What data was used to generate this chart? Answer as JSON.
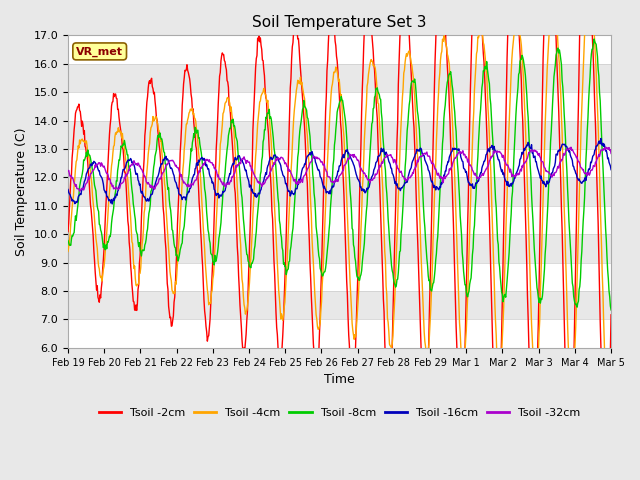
{
  "title": "Soil Temperature Set 3",
  "xlabel": "Time",
  "ylabel": "Soil Temperature (C)",
  "ylim": [
    6.0,
    17.0
  ],
  "yticks": [
    6.0,
    7.0,
    8.0,
    9.0,
    10.0,
    11.0,
    12.0,
    13.0,
    14.0,
    15.0,
    16.0,
    17.0
  ],
  "bg_color": "#e8e8e8",
  "band_colors": [
    "#ffffff",
    "#e8e8e8"
  ],
  "legend_label": "VR_met",
  "series_colors": {
    "Tsoil -2cm": "#ff0000",
    "Tsoil -4cm": "#ffa500",
    "Tsoil -8cm": "#00cc00",
    "Tsoil -16cm": "#0000bb",
    "Tsoil -32cm": "#aa00cc"
  },
  "xtick_labels": [
    "Feb 19",
    "Feb 20",
    "Feb 21",
    "Feb 22",
    "Feb 23",
    "Feb 24",
    "Feb 25",
    "Feb 26",
    "Feb 27",
    "Feb 28",
    "Feb 29",
    "Mar 1",
    "Mar 2",
    "Mar 3",
    "Mar 4",
    "Mar 5"
  ],
  "n_points": 800
}
